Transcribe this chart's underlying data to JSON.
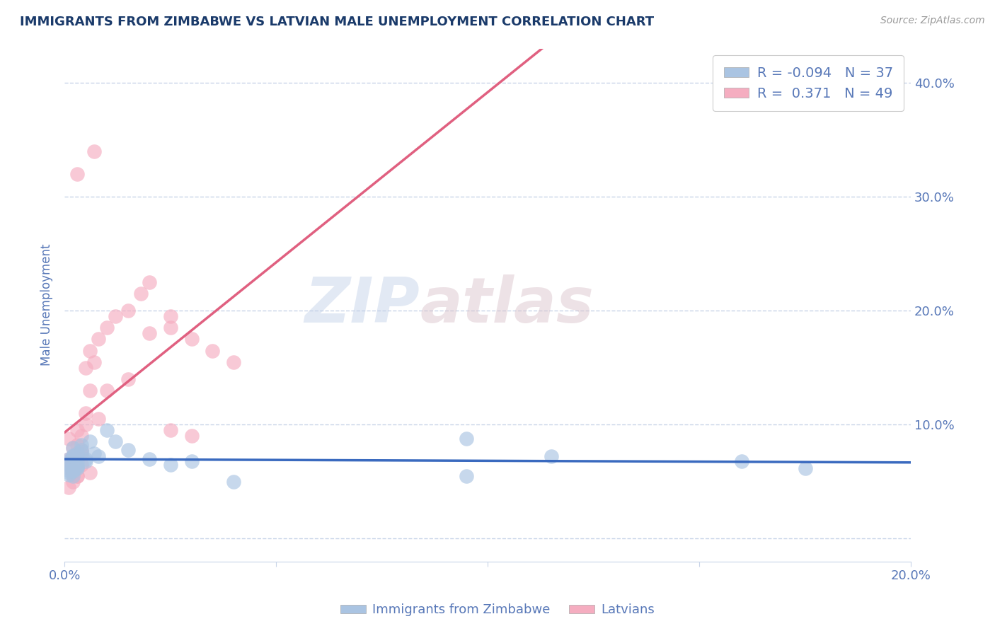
{
  "title": "IMMIGRANTS FROM ZIMBABWE VS LATVIAN MALE UNEMPLOYMENT CORRELATION CHART",
  "source": "Source: ZipAtlas.com",
  "ylabel": "Male Unemployment",
  "xlim": [
    0.0,
    0.2
  ],
  "ylim": [
    -0.02,
    0.43
  ],
  "legend_labels": [
    "Immigrants from Zimbabwe",
    "Latvians"
  ],
  "legend_R": [
    -0.094,
    0.371
  ],
  "legend_N": [
    37,
    49
  ],
  "blue_color": "#aac4e2",
  "pink_color": "#f5adc0",
  "blue_line_color": "#3a6abf",
  "pink_line_color": "#e06080",
  "pink_line_dash_color": "#e8a0b0",
  "blue_scatter_x": [
    0.001,
    0.002,
    0.001,
    0.003,
    0.001,
    0.002,
    0.001,
    0.002,
    0.003,
    0.001,
    0.002,
    0.003,
    0.001,
    0.002,
    0.003,
    0.004,
    0.002,
    0.003,
    0.004,
    0.005,
    0.004,
    0.005,
    0.006,
    0.007,
    0.008,
    0.01,
    0.012,
    0.015,
    0.02,
    0.025,
    0.03,
    0.095,
    0.16,
    0.095,
    0.04,
    0.115,
    0.175
  ],
  "blue_scatter_y": [
    0.065,
    0.06,
    0.07,
    0.062,
    0.058,
    0.072,
    0.068,
    0.055,
    0.075,
    0.06,
    0.08,
    0.063,
    0.056,
    0.073,
    0.067,
    0.078,
    0.059,
    0.064,
    0.082,
    0.07,
    0.076,
    0.068,
    0.085,
    0.075,
    0.072,
    0.095,
    0.085,
    0.078,
    0.07,
    0.065,
    0.068,
    0.088,
    0.068,
    0.055,
    0.05,
    0.072,
    0.062
  ],
  "pink_scatter_x": [
    0.001,
    0.002,
    0.001,
    0.003,
    0.002,
    0.001,
    0.002,
    0.003,
    0.001,
    0.002,
    0.003,
    0.004,
    0.002,
    0.003,
    0.001,
    0.004,
    0.003,
    0.005,
    0.004,
    0.006,
    0.005,
    0.007,
    0.006,
    0.008,
    0.01,
    0.012,
    0.015,
    0.018,
    0.02,
    0.025,
    0.005,
    0.008,
    0.01,
    0.015,
    0.02,
    0.025,
    0.03,
    0.035,
    0.03,
    0.025,
    0.04,
    0.003,
    0.007,
    0.004,
    0.006,
    0.002,
    0.001,
    0.003,
    0.002
  ],
  "pink_scatter_y": [
    0.062,
    0.058,
    0.068,
    0.055,
    0.072,
    0.065,
    0.06,
    0.075,
    0.07,
    0.08,
    0.063,
    0.078,
    0.056,
    0.082,
    0.088,
    0.074,
    0.095,
    0.11,
    0.09,
    0.13,
    0.15,
    0.155,
    0.165,
    0.175,
    0.185,
    0.195,
    0.2,
    0.215,
    0.225,
    0.195,
    0.1,
    0.105,
    0.13,
    0.14,
    0.18,
    0.185,
    0.175,
    0.165,
    0.09,
    0.095,
    0.155,
    0.32,
    0.34,
    0.065,
    0.058,
    0.05,
    0.045,
    0.055,
    0.06
  ],
  "watermark_zip": "ZIP",
  "watermark_atlas": "atlas",
  "background_color": "#ffffff",
  "grid_color": "#c8d4e8",
  "title_color": "#1a3a6a",
  "axis_color": "#5878b8",
  "tick_color": "#5878b8"
}
